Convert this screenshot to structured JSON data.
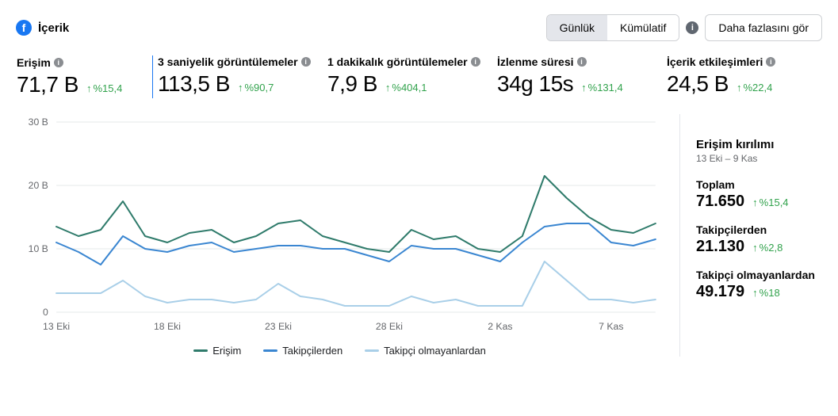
{
  "header": {
    "title": "İçerik",
    "toggle": {
      "daily": "Günlük",
      "cumulative": "Kümülatif"
    },
    "more": "Daha fazlasını gör"
  },
  "metrics": [
    {
      "label": "Erişim",
      "value": "71,7 B",
      "delta": "%15,4",
      "selected": true
    },
    {
      "label": "3 saniyelik görüntülemeler",
      "value": "113,5 B",
      "delta": "%90,7"
    },
    {
      "label": "1 dakikalık görüntülemeler",
      "value": "7,9 B",
      "delta": "%404,1"
    },
    {
      "label": "İzlenme süresi",
      "value": "34g 15s",
      "delta": "%131,4"
    },
    {
      "label": "İçerik etkileşimleri",
      "value": "24,5 B",
      "delta": "%22,4"
    }
  ],
  "chart": {
    "type": "line",
    "ylim": [
      0,
      30
    ],
    "yticks": [
      0,
      10,
      20,
      30
    ],
    "ytick_labels": [
      "0",
      "10 B",
      "20 B",
      "30 B"
    ],
    "x_labels": [
      "13 Eki",
      "18 Eki",
      "23 Eki",
      "28 Eki",
      "2 Kas",
      "7 Kas"
    ],
    "x_positions": [
      0,
      5,
      10,
      15,
      20,
      25
    ],
    "x_count": 28,
    "grid_color": "#e6e8ea",
    "background_color": "#ffffff",
    "series": [
      {
        "name": "Erişim",
        "color": "#2f7b6b",
        "width": 2,
        "values": [
          13.5,
          12,
          13,
          17.5,
          12,
          11,
          12.5,
          13,
          11,
          12,
          14,
          14.5,
          12,
          11,
          10,
          9.5,
          13,
          11.5,
          12,
          10,
          9.5,
          12,
          21.5,
          18,
          15,
          13,
          12.5,
          14
        ]
      },
      {
        "name": "Takipçilerden",
        "color": "#3a86d1",
        "width": 2,
        "values": [
          11,
          9.5,
          7.5,
          12,
          10,
          9.5,
          10.5,
          11,
          9.5,
          10,
          10.5,
          10.5,
          10,
          10,
          9,
          8,
          10.5,
          10,
          10,
          9,
          8,
          11,
          13.5,
          14,
          14,
          11,
          10.5,
          11.5
        ]
      },
      {
        "name": "Takipçi olmayanlardan",
        "color": "#a9cfe8",
        "width": 2,
        "values": [
          3,
          3,
          3,
          5,
          2.5,
          1.5,
          2,
          2,
          1.5,
          2,
          4.5,
          2.5,
          2,
          1,
          1,
          1,
          2.5,
          1.5,
          2,
          1,
          1,
          1,
          8,
          5,
          2,
          2,
          1.5,
          2
        ]
      }
    ],
    "legend_items": [
      "Erişim",
      "Takipçilerden",
      "Takipçi olmayanlardan"
    ]
  },
  "side": {
    "title": "Erişim kırılımı",
    "date": "13 Eki – 9 Kas",
    "blocks": [
      {
        "label": "Toplam",
        "value": "71.650",
        "delta": "%15,4"
      },
      {
        "label": "Takipçilerden",
        "value": "21.130",
        "delta": "%2,8"
      },
      {
        "label": "Takipçi olmayanlardan",
        "value": "49.179",
        "delta": "%18"
      }
    ]
  }
}
